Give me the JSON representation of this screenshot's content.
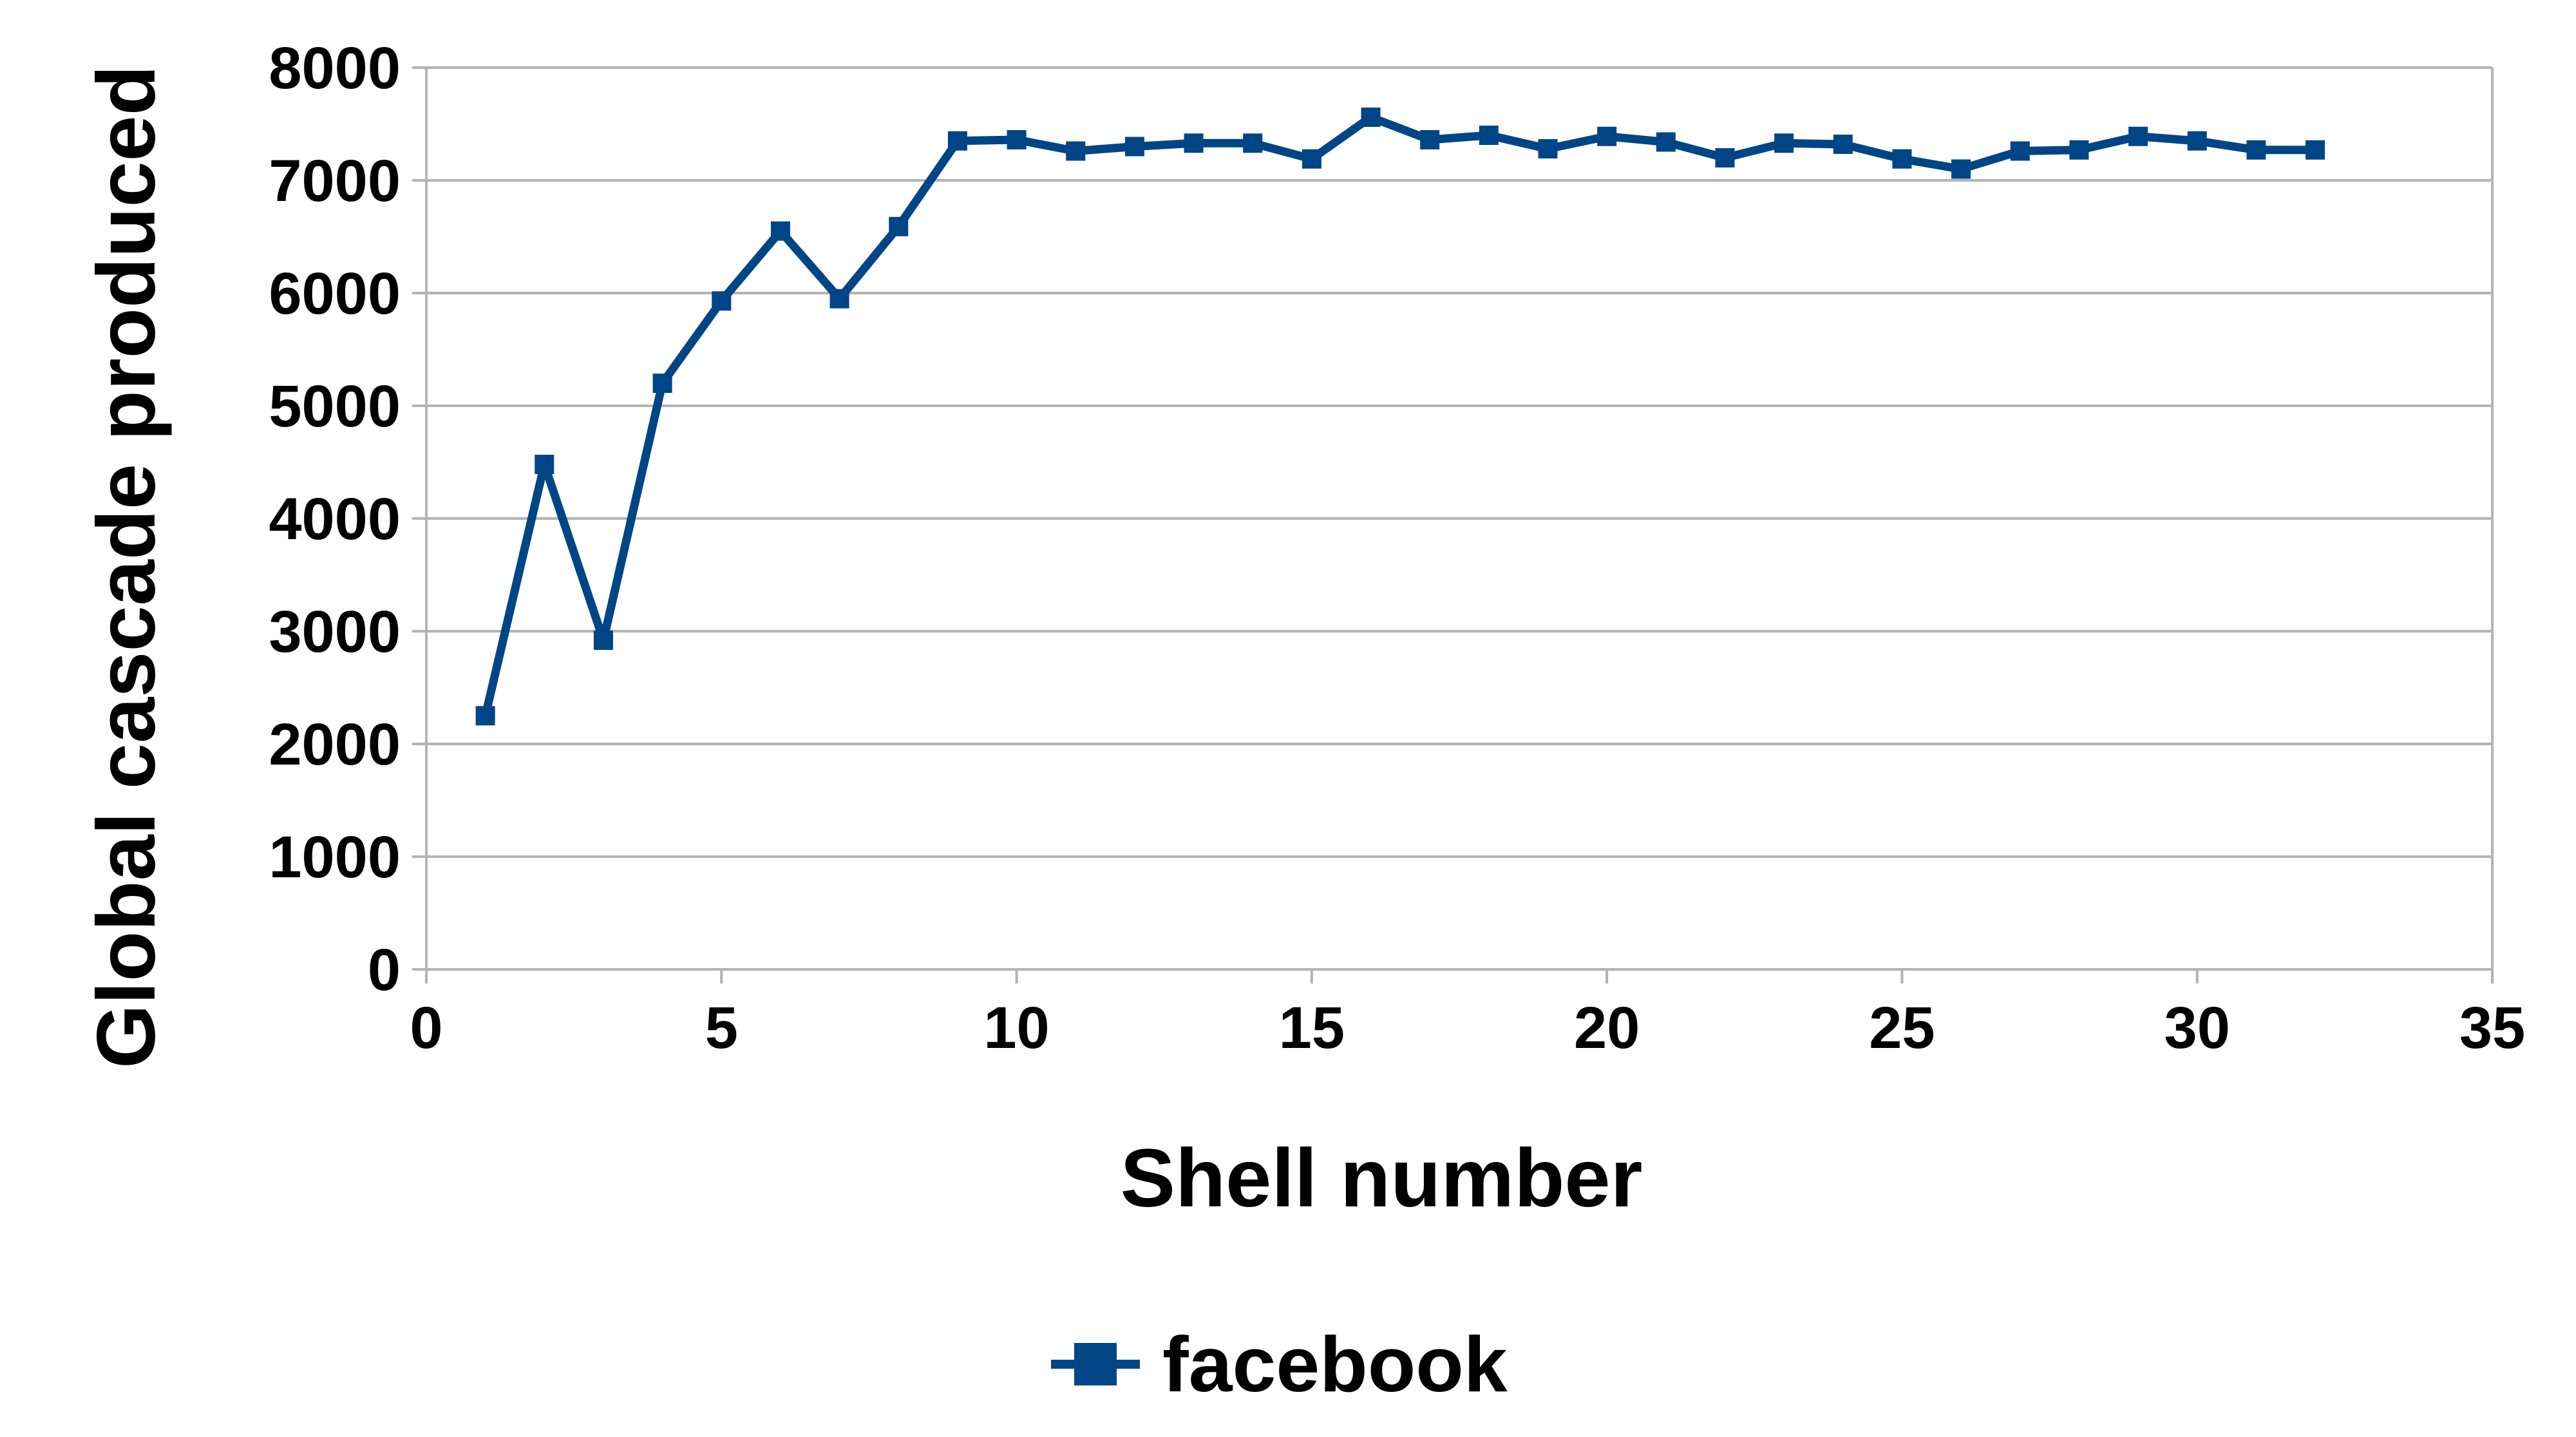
{
  "chart_data": {
    "type": "line",
    "title": "",
    "xlabel": "Shell number",
    "ylabel": "Global cascade produced",
    "xlim": [
      0,
      35
    ],
    "ylim": [
      0,
      8000
    ],
    "xticks": [
      0,
      5,
      10,
      15,
      20,
      25,
      30,
      35
    ],
    "yticks": [
      0,
      1000,
      2000,
      3000,
      4000,
      5000,
      6000,
      7000,
      8000
    ],
    "grid": "horizontal",
    "legend": "bottom",
    "series": [
      {
        "name": "facebook",
        "color": "#004586",
        "marker": "square",
        "x": [
          1,
          2,
          3,
          4,
          5,
          6,
          7,
          8,
          9,
          10,
          11,
          12,
          13,
          14,
          15,
          16,
          17,
          18,
          19,
          20,
          21,
          22,
          23,
          24,
          25,
          26,
          27,
          28,
          29,
          30,
          31,
          32
        ],
        "y": [
          2250,
          4480,
          2920,
          5200,
          5930,
          6550,
          5950,
          6590,
          7350,
          7360,
          7260,
          7300,
          7330,
          7330,
          7190,
          7560,
          7360,
          7400,
          7280,
          7390,
          7340,
          7200,
          7330,
          7320,
          7190,
          7100,
          7260,
          7270,
          7390,
          7350,
          7270,
          7270
        ]
      }
    ]
  }
}
